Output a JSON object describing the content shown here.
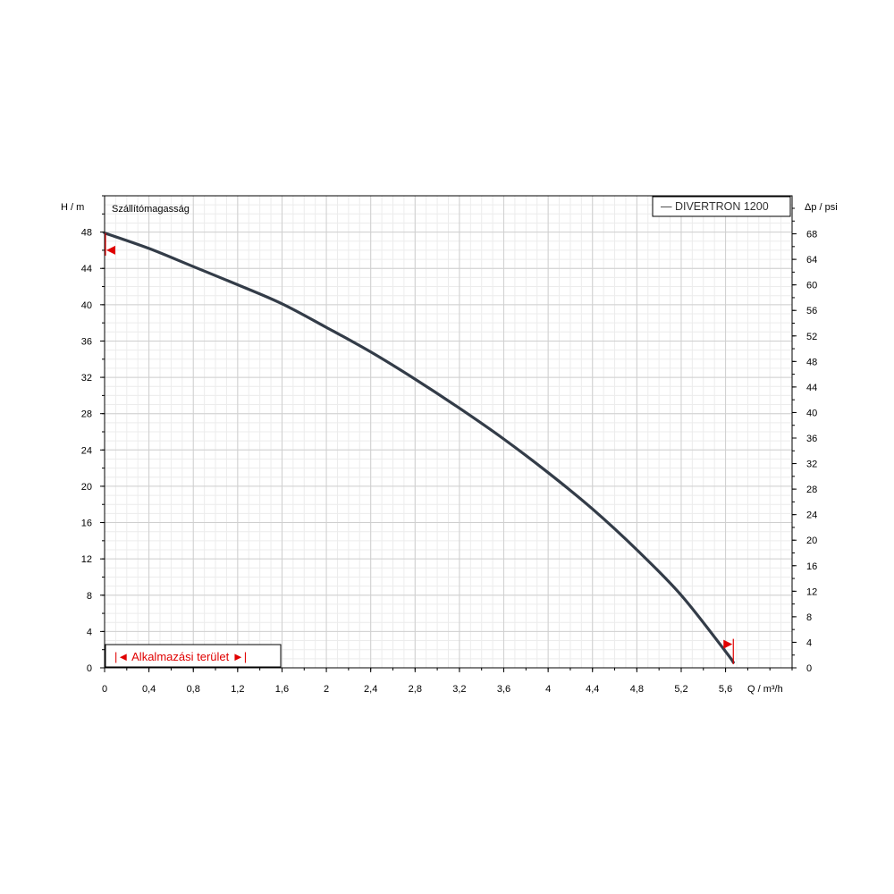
{
  "chart_data": {
    "type": "line",
    "title": "Szállítómagasság",
    "xlabel": "Q / m³/h",
    "ylabel": "H / m",
    "y2label": "Δp / psi",
    "xlim": [
      0,
      6.2
    ],
    "ylim": [
      0,
      52
    ],
    "y2lim": [
      0,
      73.96
    ],
    "grid": true,
    "x_ticks": [
      "0",
      "0,4",
      "0,8",
      "1,2",
      "1,6",
      "2",
      "2,4",
      "2,8",
      "3,2",
      "3,6",
      "4",
      "4,4",
      "4,8",
      "5,2",
      "5,6"
    ],
    "x_tick_values": [
      0,
      0.4,
      0.8,
      1.2,
      1.6,
      2,
      2.4,
      2.8,
      3.2,
      3.6,
      4,
      4.4,
      4.8,
      5.2,
      5.6
    ],
    "y_ticks": [
      "0",
      "4",
      "8",
      "12",
      "16",
      "20",
      "24",
      "28",
      "32",
      "36",
      "40",
      "44",
      "48"
    ],
    "y_tick_values": [
      0,
      4,
      8,
      12,
      16,
      20,
      24,
      28,
      32,
      36,
      40,
      44,
      48
    ],
    "y2_ticks": [
      "0",
      "4",
      "8",
      "12",
      "16",
      "20",
      "24",
      "28",
      "32",
      "36",
      "40",
      "44",
      "48",
      "52",
      "56",
      "60",
      "64",
      "68"
    ],
    "y2_tick_values": [
      0,
      4,
      8,
      12,
      16,
      20,
      24,
      28,
      32,
      36,
      40,
      44,
      48,
      52,
      56,
      60,
      64,
      68
    ],
    "series": [
      {
        "name": "DIVERTRON 1200",
        "legend_label": "— DIVERTRON 1200",
        "color": "#333c48",
        "x": [
          0,
          0.4,
          0.8,
          1.2,
          1.6,
          2.0,
          2.4,
          2.8,
          3.2,
          3.6,
          4.0,
          4.4,
          4.8,
          5.2,
          5.6,
          5.67
        ],
        "y": [
          47.9,
          46.2,
          44.2,
          42.2,
          40.1,
          37.5,
          34.8,
          31.8,
          28.6,
          25.2,
          21.5,
          17.5,
          13.0,
          8.0,
          1.8,
          0.6
        ]
      }
    ],
    "range_label": "|◄ Alkalmazási terület ►|",
    "range_color": "#e00000",
    "range_markers": [
      {
        "x": 0.0,
        "y": 46.0,
        "direction": "left"
      },
      {
        "x": 5.67,
        "y": 2.6,
        "direction": "right"
      }
    ]
  }
}
